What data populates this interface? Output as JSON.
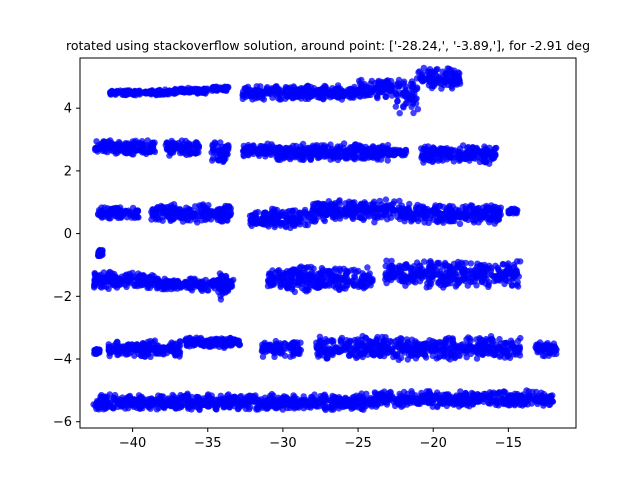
{
  "chart_data": {
    "type": "scatter",
    "title": "rotated using stackoverflow solution, around point: ['-28.24,', '-3.89,'], for -2.91 deg",
    "xlabel": "",
    "ylabel": "",
    "xlim": [
      -43.5,
      -10.5
    ],
    "ylim": [
      -6.2,
      5.6
    ],
    "x_ticks": [
      -40,
      -35,
      -30,
      -25,
      -20,
      -15
    ],
    "y_ticks": [
      -6,
      -4,
      -2,
      0,
      2,
      4
    ],
    "grid": false,
    "legend": "none",
    "marker_color": "#0000ff",
    "series": [
      {
        "marker": "o",
        "clusters": [
          {
            "x": [
              -41.5,
              -37.5
            ],
            "y": [
              4.4,
              4.6
            ]
          },
          {
            "x": [
              -37.5,
              -35.0
            ],
            "y": [
              4.45,
              4.65
            ]
          },
          {
            "x": [
              -34.7,
              -33.6
            ],
            "y": [
              4.55,
              4.7
            ]
          },
          {
            "x": [
              -32.7,
              -25.0
            ],
            "y": [
              4.25,
              4.75
            ]
          },
          {
            "x": [
              -25.0,
              -22.5
            ],
            "y": [
              4.3,
              4.95
            ]
          },
          {
            "x": [
              -22.5,
              -21.0
            ],
            "y": [
              3.8,
              5.05
            ]
          },
          {
            "x": [
              -21.0,
              -18.2
            ],
            "y": [
              4.55,
              5.3
            ]
          },
          {
            "x": [
              -42.5,
              -38.5
            ],
            "y": [
              2.5,
              3.0
            ]
          },
          {
            "x": [
              -37.8,
              -35.5
            ],
            "y": [
              2.45,
              3.0
            ]
          },
          {
            "x": [
              -34.8,
              -33.6
            ],
            "y": [
              2.25,
              2.95
            ]
          },
          {
            "x": [
              -32.7,
              -30.7
            ],
            "y": [
              2.4,
              2.9
            ]
          },
          {
            "x": [
              -30.5,
              -23.0
            ],
            "y": [
              2.3,
              2.9
            ]
          },
          {
            "x": [
              -23.0,
              -21.8
            ],
            "y": [
              2.45,
              2.7
            ]
          },
          {
            "x": [
              -20.8,
              -15.8
            ],
            "y": [
              2.2,
              2.85
            ]
          },
          {
            "x": [
              -42.3,
              -39.6
            ],
            "y": [
              0.45,
              0.85
            ]
          },
          {
            "x": [
              -38.8,
              -33.4
            ],
            "y": [
              0.35,
              0.95
            ]
          },
          {
            "x": [
              -32.2,
              -27.8
            ],
            "y": [
              0.15,
              0.85
            ]
          },
          {
            "x": [
              -28.0,
              -22.0
            ],
            "y": [
              0.35,
              1.1
            ]
          },
          {
            "x": [
              -22.0,
              -15.5
            ],
            "y": [
              0.3,
              0.95
            ]
          },
          {
            "x": [
              -15.0,
              -14.4
            ],
            "y": [
              0.6,
              0.85
            ]
          },
          {
            "x": [
              -42.3,
              -42.0
            ],
            "y": [
              -0.75,
              -0.5
            ]
          },
          {
            "x": [
              -42.6,
              -38.5
            ],
            "y": [
              -1.8,
              -1.2
            ]
          },
          {
            "x": [
              -38.4,
              -33.3
            ],
            "y": [
              -1.85,
              -1.4
            ]
          },
          {
            "x": [
              -34.3,
              -33.4
            ],
            "y": [
              -2.2,
              -1.2
            ]
          },
          {
            "x": [
              -31.0,
              -24.0
            ],
            "y": [
              -1.9,
              -1.0
            ]
          },
          {
            "x": [
              -23.2,
              -14.2
            ],
            "y": [
              -1.75,
              -0.8
            ]
          },
          {
            "x": [
              -42.6,
              -42.2
            ],
            "y": [
              -3.85,
              -3.65
            ]
          },
          {
            "x": [
              -41.6,
              -36.8
            ],
            "y": [
              -3.95,
              -3.4
            ]
          },
          {
            "x": [
              -36.5,
              -32.8
            ],
            "y": [
              -3.65,
              -3.3
            ]
          },
          {
            "x": [
              -31.4,
              -28.8
            ],
            "y": [
              -3.95,
              -3.4
            ]
          },
          {
            "x": [
              -27.8,
              -14.2
            ],
            "y": [
              -4.05,
              -3.25
            ]
          },
          {
            "x": [
              -13.2,
              -11.8
            ],
            "y": [
              -3.95,
              -3.4
            ]
          },
          {
            "x": [
              -42.6,
              -24.0
            ],
            "y": [
              -5.65,
              -5.1
            ]
          },
          {
            "x": [
              -24.0,
              -12.0
            ],
            "y": [
              -5.55,
              -5.0
            ]
          }
        ]
      }
    ]
  }
}
